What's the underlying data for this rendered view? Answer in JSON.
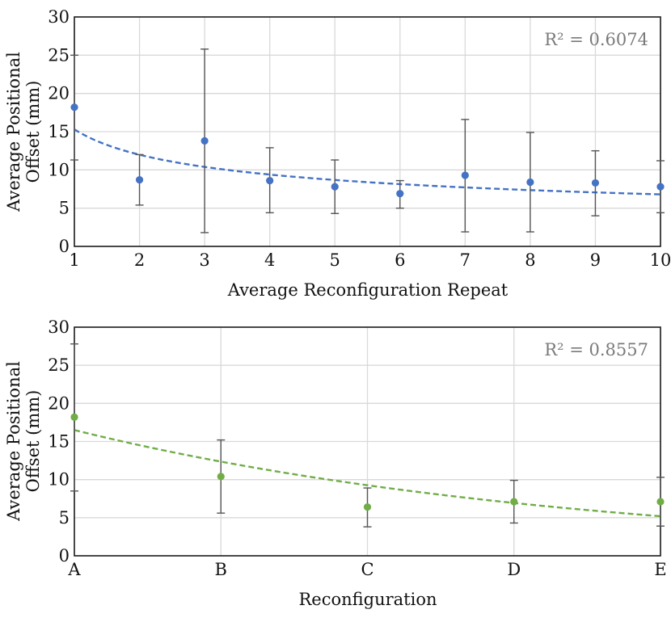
{
  "chart_data": [
    {
      "type": "scatter",
      "x_categories": [
        "1",
        "2",
        "3",
        "4",
        "5",
        "6",
        "7",
        "8",
        "9",
        "10"
      ],
      "xlabel": "Average Reconfiguration Repeat",
      "ylabel_line1": "Average Positional",
      "ylabel_line2": "Offset (mm)",
      "ylim": [
        0,
        30
      ],
      "yticks": [
        "0",
        "5",
        "10",
        "15",
        "20",
        "25",
        "30"
      ],
      "color": "#4472c4",
      "values": [
        18.2,
        8.7,
        13.8,
        8.6,
        7.8,
        6.9,
        9.3,
        8.4,
        8.3,
        7.8
      ],
      "error_low": [
        11.3,
        5.4,
        1.8,
        4.4,
        4.3,
        5.0,
        1.9,
        1.9,
        4.0,
        4.4
      ],
      "error_high": [
        25.0,
        12.0,
        25.8,
        12.9,
        11.3,
        8.6,
        16.6,
        14.9,
        12.5,
        11.2
      ],
      "trendline": {
        "type": "power",
        "a": 15.3,
        "b": -0.352
      },
      "r2_label": "R² = 0.6074"
    },
    {
      "type": "scatter",
      "x_categories": [
        "A",
        "B",
        "C",
        "D",
        "E"
      ],
      "xlabel": "Reconfiguration",
      "ylabel_line1": "Average Positional",
      "ylabel_line2": "Offset (mm)",
      "ylim": [
        0,
        30
      ],
      "yticks": [
        "0",
        "5",
        "10",
        "15",
        "20",
        "25",
        "30"
      ],
      "color": "#70ad47",
      "values": [
        18.2,
        10.4,
        6.4,
        7.1,
        7.1
      ],
      "error_low": [
        8.5,
        5.6,
        3.8,
        4.3,
        3.9
      ],
      "error_high": [
        27.8,
        15.2,
        8.9,
        9.9,
        10.3
      ],
      "trendline": {
        "type": "exponential",
        "a": 16.5,
        "b": -0.289
      },
      "r2_label": "R² = 0.8557"
    }
  ]
}
